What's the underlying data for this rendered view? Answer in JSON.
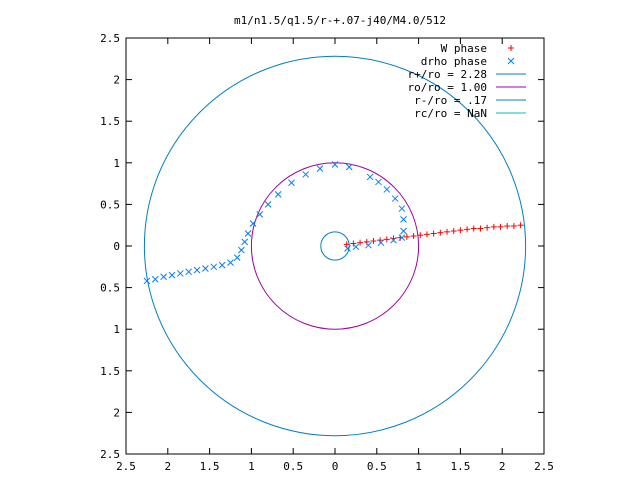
{
  "chart_data": {
    "type": "scatter",
    "title": "m1/n1.5/q1.5/r-+.07-j40/M4.0/512",
    "xlabel": "",
    "ylabel": "",
    "xlim": [
      -2.5,
      2.5
    ],
    "ylim": [
      -2.5,
      2.5
    ],
    "x_tick_labels": [
      "2.5",
      "2",
      "1.5",
      "1",
      "0.5",
      "0",
      "0.5",
      "1",
      "1.5",
      "2",
      "2.5"
    ],
    "y_tick_labels": [
      "2.5",
      "2",
      "1.5",
      "1",
      "0.5",
      "0",
      "0.5",
      "1",
      "1.5",
      "2",
      "2.5"
    ],
    "x_tick_values": [
      -2.5,
      -2,
      -1.5,
      -1,
      -0.5,
      0,
      0.5,
      1,
      1.5,
      2,
      2.5
    ],
    "y_tick_values": [
      2.5,
      2,
      1.5,
      1,
      0.5,
      0,
      -0.5,
      -1,
      -1.5,
      -2,
      -2.5
    ],
    "grid": false,
    "legend_position": "top-right",
    "series": [
      {
        "name": "W phase",
        "marker": "plus",
        "color": "#ff0000",
        "points": [
          [
            0.14,
            0.02
          ],
          [
            0.22,
            0.03
          ],
          [
            0.3,
            0.04
          ],
          [
            0.38,
            0.05
          ],
          [
            0.46,
            0.06
          ],
          [
            0.54,
            0.07
          ],
          [
            0.62,
            0.08
          ],
          [
            0.7,
            0.09
          ],
          [
            0.78,
            0.1
          ],
          [
            0.86,
            0.11
          ],
          [
            0.94,
            0.12
          ],
          [
            1.02,
            0.13
          ],
          [
            1.1,
            0.14
          ],
          [
            1.18,
            0.15
          ],
          [
            1.26,
            0.16
          ],
          [
            1.34,
            0.17
          ],
          [
            1.42,
            0.18
          ],
          [
            1.5,
            0.19
          ],
          [
            1.58,
            0.2
          ],
          [
            1.66,
            0.21
          ],
          [
            1.74,
            0.21
          ],
          [
            1.82,
            0.22
          ],
          [
            1.9,
            0.23
          ],
          [
            1.98,
            0.23
          ],
          [
            2.06,
            0.24
          ],
          [
            2.14,
            0.24
          ],
          [
            2.22,
            0.25
          ]
        ]
      },
      {
        "name": "drho phase",
        "marker": "x",
        "color": "#0080ff",
        "points": [
          [
            -2.25,
            -0.42
          ],
          [
            -2.15,
            -0.4
          ],
          [
            -2.05,
            -0.37
          ],
          [
            -1.95,
            -0.35
          ],
          [
            -1.85,
            -0.33
          ],
          [
            -1.75,
            -0.31
          ],
          [
            -1.65,
            -0.29
          ],
          [
            -1.55,
            -0.27
          ],
          [
            -1.45,
            -0.25
          ],
          [
            -1.35,
            -0.23
          ],
          [
            -1.25,
            -0.2
          ],
          [
            -1.17,
            -0.14
          ],
          [
            -1.12,
            -0.05
          ],
          [
            -1.08,
            0.05
          ],
          [
            -1.04,
            0.15
          ],
          [
            -0.98,
            0.27
          ],
          [
            -0.9,
            0.38
          ],
          [
            -0.8,
            0.5
          ],
          [
            -0.68,
            0.62
          ],
          [
            -0.52,
            0.76
          ],
          [
            -0.35,
            0.86
          ],
          [
            -0.18,
            0.93
          ],
          [
            0.0,
            0.98
          ],
          [
            0.17,
            0.95
          ],
          [
            0.42,
            0.83
          ],
          [
            0.52,
            0.77
          ],
          [
            0.62,
            0.68
          ],
          [
            0.72,
            0.57
          ],
          [
            0.8,
            0.45
          ],
          [
            0.82,
            0.32
          ],
          [
            0.82,
            0.18
          ],
          [
            0.8,
            0.1
          ],
          [
            0.7,
            0.07
          ],
          [
            0.55,
            0.04
          ],
          [
            0.4,
            0.01
          ],
          [
            0.25,
            -0.01
          ],
          [
            0.15,
            -0.03
          ]
        ]
      },
      {
        "name": "r+/ro = 2.28",
        "type": "circle",
        "radius": 2.28,
        "color": "#0080c0"
      },
      {
        "name": "ro/ro = 1.00",
        "type": "circle",
        "radius": 1.0,
        "color": "#a000a0"
      },
      {
        "name": "r-/ro = .17",
        "type": "circle",
        "radius": 0.17,
        "color": "#0080c0"
      },
      {
        "name": "rc/ro = NaN",
        "type": "circle",
        "radius": null,
        "color": "#00c0c0"
      }
    ]
  }
}
